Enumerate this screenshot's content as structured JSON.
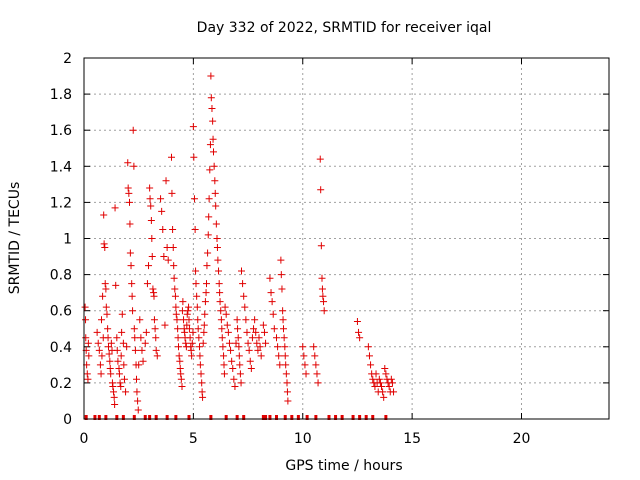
{
  "chart_data": {
    "type": "scatter",
    "title": "Day 332 of 2022, SRMTID for receiver iqal",
    "xlabel": "GPS time / hours",
    "ylabel": "SRMTID / TECUs",
    "xlim": [
      0,
      24
    ],
    "ylim": [
      0,
      2
    ],
    "xticks": [
      0,
      5,
      10,
      15,
      20
    ],
    "xtick_labels": [
      "0",
      "5",
      "10",
      "15",
      "20"
    ],
    "yticks": [
      0,
      0.2,
      0.4,
      0.6,
      0.8,
      1,
      1.2,
      1.4,
      1.6,
      1.8,
      2
    ],
    "ytick_labels": [
      "0",
      "0.2",
      "0.4",
      "0.6",
      "0.8",
      "1",
      "1.2",
      "1.4",
      "1.6",
      "1.8",
      "2"
    ],
    "grid": true,
    "marker": "plus",
    "color": "#e00000",
    "series": [
      {
        "name": "SRMTID",
        "points": [
          [
            0.05,
            0.62
          ],
          [
            0.07,
            0.55
          ],
          [
            0.08,
            0.45
          ],
          [
            0.1,
            0.38
          ],
          [
            0.12,
            0.3
          ],
          [
            0.15,
            0.25
          ],
          [
            0.18,
            0.22
          ],
          [
            0.2,
            0.42
          ],
          [
            0.22,
            0.35
          ],
          [
            0.6,
            0.48
          ],
          [
            0.65,
            0.42
          ],
          [
            0.7,
            0.38
          ],
          [
            0.75,
            0.3
          ],
          [
            0.78,
            0.25
          ],
          [
            0.8,
            0.55
          ],
          [
            0.82,
            0.35
          ],
          [
            0.85,
            0.68
          ],
          [
            0.88,
            0.45
          ],
          [
            0.9,
            1.13
          ],
          [
            0.92,
            0.97
          ],
          [
            0.95,
            0.95
          ],
          [
            0.97,
            0.75
          ],
          [
            1.0,
            0.72
          ],
          [
            1.02,
            0.62
          ],
          [
            1.05,
            0.58
          ],
          [
            1.08,
            0.5
          ],
          [
            1.1,
            0.45
          ],
          [
            1.12,
            0.4
          ],
          [
            1.15,
            0.36
          ],
          [
            1.18,
            0.32
          ],
          [
            1.2,
            0.28
          ],
          [
            1.22,
            0.25
          ],
          [
            1.25,
            0.42
          ],
          [
            1.28,
            0.38
          ],
          [
            1.3,
            0.2
          ],
          [
            1.32,
            0.18
          ],
          [
            1.35,
            0.15
          ],
          [
            1.38,
            0.12
          ],
          [
            1.4,
            0.08
          ],
          [
            1.42,
            1.17
          ],
          [
            1.45,
            0.74
          ],
          [
            1.5,
            0.45
          ],
          [
            1.52,
            0.38
          ],
          [
            1.55,
            0.32
          ],
          [
            1.6,
            0.28
          ],
          [
            1.62,
            0.25
          ],
          [
            1.65,
            0.2
          ],
          [
            1.68,
            0.18
          ],
          [
            1.7,
            0.35
          ],
          [
            1.72,
            0.48
          ],
          [
            1.75,
            0.58
          ],
          [
            1.8,
            0.42
          ],
          [
            1.82,
            0.3
          ],
          [
            1.85,
            0.22
          ],
          [
            1.9,
            0.15
          ],
          [
            1.95,
            0.4
          ],
          [
            2.0,
            1.42
          ],
          [
            2.02,
            1.28
          ],
          [
            2.05,
            1.25
          ],
          [
            2.08,
            1.2
          ],
          [
            2.1,
            1.08
          ],
          [
            2.12,
            0.92
          ],
          [
            2.15,
            0.85
          ],
          [
            2.18,
            0.75
          ],
          [
            2.2,
            0.68
          ],
          [
            2.22,
            0.6
          ],
          [
            2.25,
            1.6
          ],
          [
            2.28,
            1.4
          ],
          [
            2.3,
            0.5
          ],
          [
            2.32,
            0.45
          ],
          [
            2.35,
            0.38
          ],
          [
            2.38,
            0.3
          ],
          [
            2.4,
            0.22
          ],
          [
            2.42,
            0.15
          ],
          [
            2.45,
            0.1
          ],
          [
            2.48,
            0.05
          ],
          [
            2.5,
            0.3
          ],
          [
            2.55,
            0.55
          ],
          [
            2.6,
            0.45
          ],
          [
            2.65,
            0.38
          ],
          [
            2.7,
            0.32
          ],
          [
            2.8,
            0.42
          ],
          [
            2.85,
            0.48
          ],
          [
            2.9,
            0.75
          ],
          [
            2.95,
            0.85
          ],
          [
            3.0,
            1.28
          ],
          [
            3.02,
            1.22
          ],
          [
            3.05,
            1.18
          ],
          [
            3.08,
            1.1
          ],
          [
            3.1,
            1.0
          ],
          [
            3.12,
            0.9
          ],
          [
            3.15,
            0.72
          ],
          [
            3.18,
            0.7
          ],
          [
            3.2,
            0.68
          ],
          [
            3.22,
            0.55
          ],
          [
            3.25,
            0.5
          ],
          [
            3.28,
            0.45
          ],
          [
            3.3,
            0.38
          ],
          [
            3.35,
            0.35
          ],
          [
            3.5,
            1.22
          ],
          [
            3.55,
            1.15
          ],
          [
            3.6,
            1.05
          ],
          [
            3.65,
            0.9
          ],
          [
            3.7,
            0.52
          ],
          [
            3.75,
            1.32
          ],
          [
            3.8,
            0.95
          ],
          [
            3.85,
            0.88
          ],
          [
            4.0,
            1.45
          ],
          [
            4.02,
            1.25
          ],
          [
            4.05,
            1.05
          ],
          [
            4.08,
            0.95
          ],
          [
            4.1,
            0.85
          ],
          [
            4.12,
            0.78
          ],
          [
            4.15,
            0.72
          ],
          [
            4.18,
            0.68
          ],
          [
            4.2,
            0.62
          ],
          [
            4.22,
            0.58
          ],
          [
            4.25,
            0.55
          ],
          [
            4.28,
            0.5
          ],
          [
            4.3,
            0.45
          ],
          [
            4.32,
            0.4
          ],
          [
            4.35,
            0.35
          ],
          [
            4.38,
            0.32
          ],
          [
            4.4,
            0.28
          ],
          [
            4.42,
            0.25
          ],
          [
            4.45,
            0.22
          ],
          [
            4.48,
            0.18
          ],
          [
            4.5,
            0.6
          ],
          [
            4.52,
            0.65
          ],
          [
            4.55,
            0.55
          ],
          [
            4.58,
            0.5
          ],
          [
            4.6,
            0.48
          ],
          [
            4.62,
            0.45
          ],
          [
            4.65,
            0.42
          ],
          [
            4.68,
            0.4
          ],
          [
            4.7,
            0.52
          ],
          [
            4.72,
            0.58
          ],
          [
            4.75,
            0.6
          ],
          [
            4.78,
            0.62
          ],
          [
            4.8,
            0.55
          ],
          [
            4.82,
            0.5
          ],
          [
            4.85,
            0.45
          ],
          [
            4.88,
            0.4
          ],
          [
            4.9,
            0.38
          ],
          [
            4.92,
            0.35
          ],
          [
            4.95,
            0.42
          ],
          [
            4.98,
            0.48
          ],
          [
            5.0,
            1.62
          ],
          [
            5.02,
            1.45
          ],
          [
            5.05,
            1.22
          ],
          [
            5.08,
            1.05
          ],
          [
            5.1,
            0.82
          ],
          [
            5.12,
            0.75
          ],
          [
            5.15,
            0.68
          ],
          [
            5.18,
            0.62
          ],
          [
            5.2,
            0.55
          ],
          [
            5.22,
            0.5
          ],
          [
            5.25,
            0.45
          ],
          [
            5.28,
            0.4
          ],
          [
            5.3,
            0.35
          ],
          [
            5.32,
            0.3
          ],
          [
            5.35,
            0.25
          ],
          [
            5.38,
            0.2
          ],
          [
            5.4,
            0.15
          ],
          [
            5.42,
            0.12
          ],
          [
            5.45,
            0.42
          ],
          [
            5.48,
            0.48
          ],
          [
            5.5,
            0.52
          ],
          [
            5.52,
            0.58
          ],
          [
            5.55,
            0.65
          ],
          [
            5.58,
            0.7
          ],
          [
            5.6,
            0.75
          ],
          [
            5.62,
            0.85
          ],
          [
            5.65,
            0.92
          ],
          [
            5.68,
            1.02
          ],
          [
            5.7,
            1.12
          ],
          [
            5.72,
            1.22
          ],
          [
            5.75,
            1.38
          ],
          [
            5.78,
            1.52
          ],
          [
            5.8,
            1.9
          ],
          [
            5.82,
            1.78
          ],
          [
            5.85,
            1.72
          ],
          [
            5.88,
            1.65
          ],
          [
            5.9,
            1.55
          ],
          [
            5.92,
            1.48
          ],
          [
            5.95,
            1.4
          ],
          [
            5.98,
            1.32
          ],
          [
            6.0,
            1.25
          ],
          [
            6.02,
            1.18
          ],
          [
            6.05,
            1.08
          ],
          [
            6.08,
            1.0
          ],
          [
            6.1,
            0.95
          ],
          [
            6.12,
            0.88
          ],
          [
            6.15,
            0.82
          ],
          [
            6.18,
            0.75
          ],
          [
            6.2,
            0.7
          ],
          [
            6.22,
            0.65
          ],
          [
            6.25,
            0.6
          ],
          [
            6.28,
            0.55
          ],
          [
            6.3,
            0.5
          ],
          [
            6.32,
            0.45
          ],
          [
            6.35,
            0.4
          ],
          [
            6.38,
            0.35
          ],
          [
            6.4,
            0.3
          ],
          [
            6.42,
            0.25
          ],
          [
            6.45,
            0.62
          ],
          [
            6.5,
            0.58
          ],
          [
            6.55,
            0.52
          ],
          [
            6.6,
            0.48
          ],
          [
            6.65,
            0.42
          ],
          [
            6.7,
            0.38
          ],
          [
            6.75,
            0.32
          ],
          [
            6.8,
            0.28
          ],
          [
            6.85,
            0.22
          ],
          [
            6.9,
            0.18
          ],
          [
            6.95,
            0.42
          ],
          [
            7.0,
            0.55
          ],
          [
            7.02,
            0.5
          ],
          [
            7.05,
            0.45
          ],
          [
            7.08,
            0.4
          ],
          [
            7.1,
            0.35
          ],
          [
            7.12,
            0.3
          ],
          [
            7.15,
            0.25
          ],
          [
            7.18,
            0.2
          ],
          [
            7.2,
            0.82
          ],
          [
            7.25,
            0.75
          ],
          [
            7.3,
            0.68
          ],
          [
            7.35,
            0.62
          ],
          [
            7.4,
            0.55
          ],
          [
            7.45,
            0.48
          ],
          [
            7.5,
            0.42
          ],
          [
            7.55,
            0.38
          ],
          [
            7.6,
            0.32
          ],
          [
            7.65,
            0.28
          ],
          [
            7.7,
            0.45
          ],
          [
            7.75,
            0.5
          ],
          [
            7.8,
            0.55
          ],
          [
            7.85,
            0.48
          ],
          [
            7.9,
            0.42
          ],
          [
            7.95,
            0.38
          ],
          [
            8.0,
            0.45
          ],
          [
            8.05,
            0.4
          ],
          [
            8.1,
            0.35
          ],
          [
            8.2,
            0.52
          ],
          [
            8.25,
            0.48
          ],
          [
            8.3,
            0.42
          ],
          [
            8.5,
            0.78
          ],
          [
            8.55,
            0.7
          ],
          [
            8.6,
            0.65
          ],
          [
            8.65,
            0.58
          ],
          [
            8.7,
            0.5
          ],
          [
            8.8,
            0.45
          ],
          [
            8.85,
            0.4
          ],
          [
            8.9,
            0.35
          ],
          [
            8.95,
            0.3
          ],
          [
            9.0,
            0.88
          ],
          [
            9.02,
            0.8
          ],
          [
            9.05,
            0.72
          ],
          [
            9.08,
            0.6
          ],
          [
            9.1,
            0.55
          ],
          [
            9.12,
            0.5
          ],
          [
            9.15,
            0.45
          ],
          [
            9.18,
            0.4
          ],
          [
            9.2,
            0.35
          ],
          [
            9.22,
            0.3
          ],
          [
            9.25,
            0.25
          ],
          [
            9.28,
            0.2
          ],
          [
            9.3,
            0.15
          ],
          [
            9.32,
            0.1
          ],
          [
            10.0,
            0.4
          ],
          [
            10.05,
            0.35
          ],
          [
            10.1,
            0.3
          ],
          [
            10.15,
            0.25
          ],
          [
            10.5,
            0.4
          ],
          [
            10.55,
            0.35
          ],
          [
            10.6,
            0.3
          ],
          [
            10.65,
            0.25
          ],
          [
            10.7,
            0.2
          ],
          [
            10.8,
            1.44
          ],
          [
            10.82,
            1.27
          ],
          [
            10.85,
            0.96
          ],
          [
            10.88,
            0.78
          ],
          [
            10.9,
            0.72
          ],
          [
            10.92,
            0.68
          ],
          [
            10.95,
            0.65
          ],
          [
            10.98,
            0.6
          ],
          [
            12.5,
            0.54
          ],
          [
            12.55,
            0.48
          ],
          [
            12.6,
            0.45
          ],
          [
            13.0,
            0.4
          ],
          [
            13.05,
            0.35
          ],
          [
            13.1,
            0.3
          ],
          [
            13.15,
            0.25
          ],
          [
            13.2,
            0.22
          ],
          [
            13.25,
            0.2
          ],
          [
            13.3,
            0.18
          ],
          [
            13.35,
            0.25
          ],
          [
            13.4,
            0.2
          ],
          [
            13.45,
            0.15
          ],
          [
            13.5,
            0.22
          ],
          [
            13.55,
            0.2
          ],
          [
            13.6,
            0.18
          ],
          [
            13.65,
            0.15
          ],
          [
            13.7,
            0.12
          ],
          [
            13.75,
            0.28
          ],
          [
            13.8,
            0.25
          ],
          [
            13.85,
            0.22
          ],
          [
            13.9,
            0.2
          ],
          [
            13.95,
            0.18
          ],
          [
            14.0,
            0.15
          ],
          [
            14.05,
            0.22
          ],
          [
            14.1,
            0.2
          ],
          [
            14.15,
            0.15
          ]
        ]
      }
    ],
    "zero_values_x": [
      0.1,
      0.5,
      0.7,
      1.0,
      1.5,
      1.8,
      2.3,
      2.8,
      3.0,
      3.3,
      3.8,
      4.2,
      4.8,
      5.8,
      6.5,
      7.0,
      7.3,
      8.2,
      8.3,
      8.5,
      8.8,
      9.2,
      9.5,
      9.8,
      10.2,
      10.6,
      11.2,
      11.5,
      11.8,
      12.3,
      12.6,
      12.9,
      13.2,
      13.8
    ]
  }
}
